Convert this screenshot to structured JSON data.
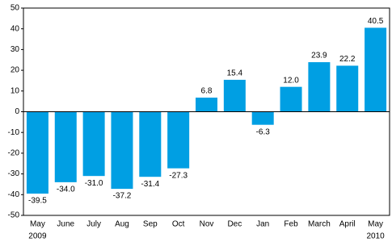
{
  "chart_data": {
    "type": "bar",
    "categories": [
      "May",
      "June",
      "July",
      "Aug",
      "Sep",
      "Oct",
      "Nov",
      "Dec",
      "Jan",
      "Feb",
      "March",
      "April",
      "May"
    ],
    "year_labels": [
      "2009",
      null,
      null,
      null,
      null,
      null,
      null,
      null,
      null,
      null,
      null,
      null,
      "2010"
    ],
    "values": [
      -39.5,
      -34.0,
      -31.0,
      -37.2,
      -31.4,
      -27.3,
      6.8,
      15.4,
      -6.3,
      12.0,
      23.9,
      22.2,
      40.5
    ],
    "value_labels": [
      "-39.5",
      "-34.0",
      "-31.0",
      "-37.2",
      "-31.4",
      "-27.3",
      "6.8",
      "15.4",
      "-6.3",
      "12.0",
      "23.9",
      "22.2",
      "40.5"
    ],
    "color": "#009fe3",
    "ylim": [
      -50,
      50
    ],
    "yticks": [
      -50,
      -40,
      -30,
      -20,
      -10,
      0,
      10,
      20,
      30,
      40,
      50
    ],
    "grid": false
  }
}
